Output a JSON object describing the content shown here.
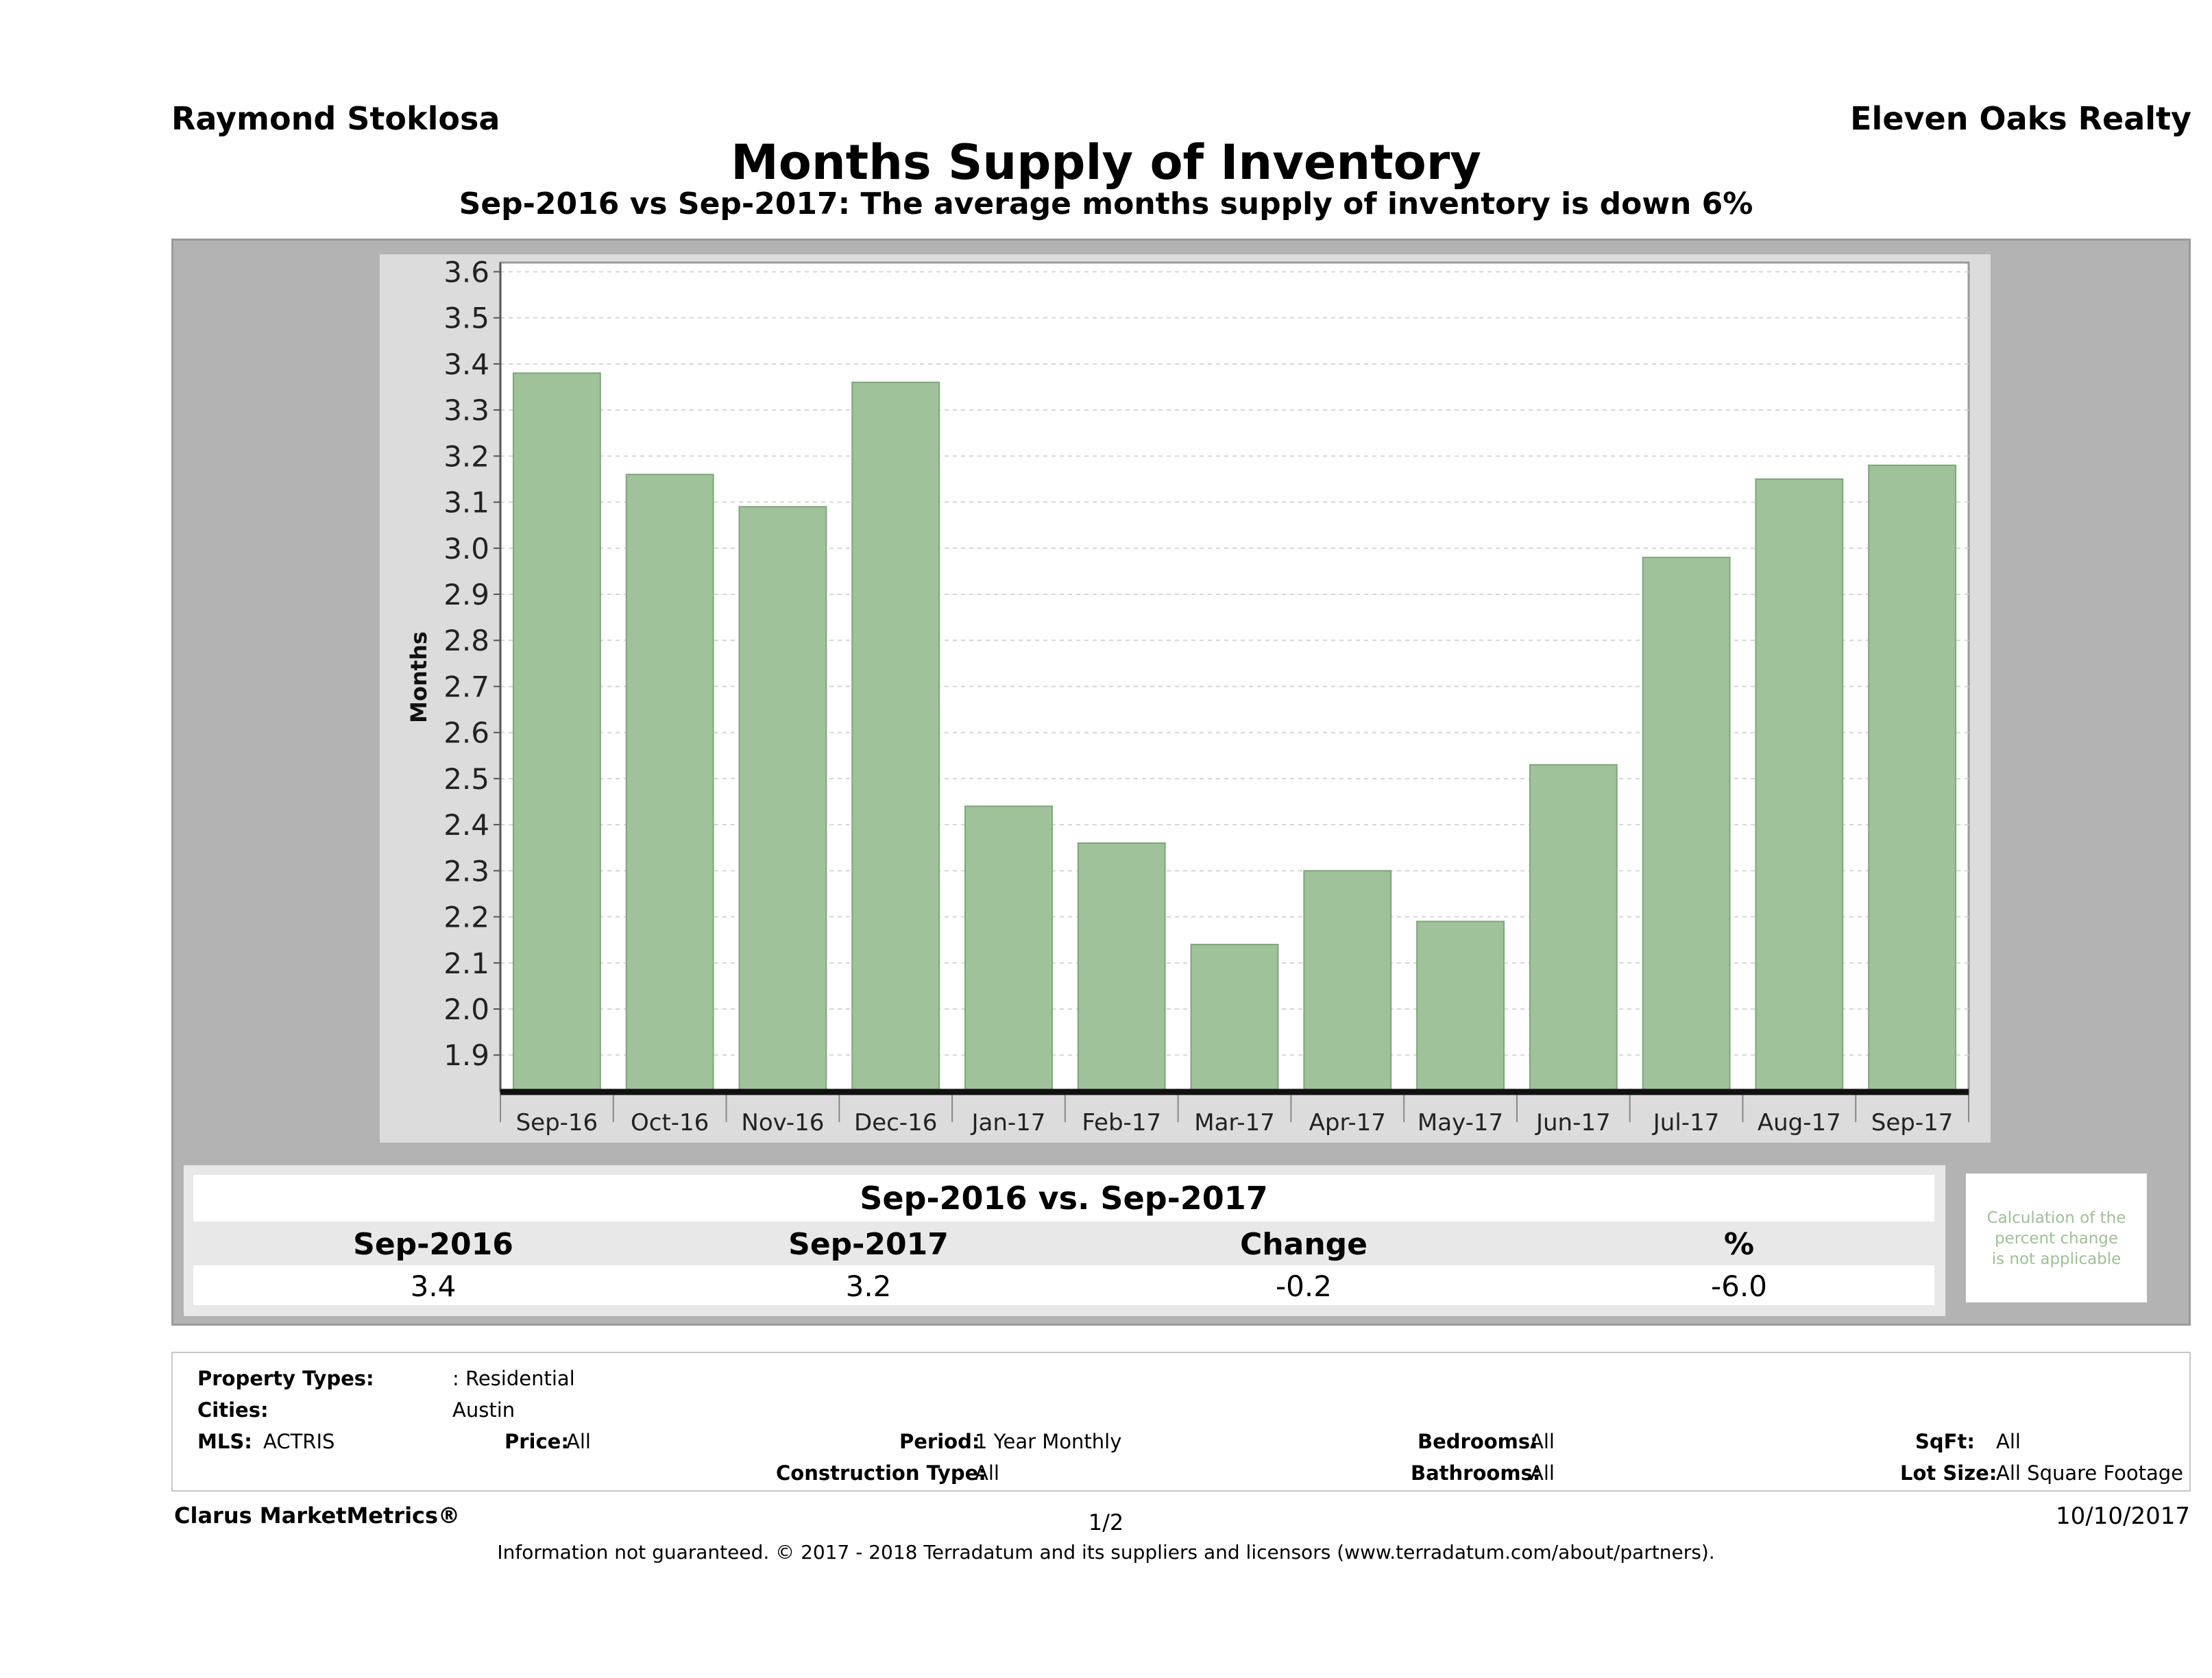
{
  "header": {
    "agent": "Raymond Stoklosa",
    "brokerage": "Eleven Oaks Realty",
    "title": "Months Supply of Inventory",
    "subtitle": "Sep-2016 vs Sep-2017: The average months supply of inventory is down 6%"
  },
  "chart_data": {
    "type": "bar",
    "title": "Months Supply of Inventory",
    "ylabel": "Months",
    "xlabel": "",
    "ylim": [
      1.82,
      3.62
    ],
    "yticks": [
      "1.9",
      "2.0",
      "2.1",
      "2.2",
      "2.3",
      "2.4",
      "2.5",
      "2.6",
      "2.7",
      "2.8",
      "2.9",
      "3.0",
      "3.1",
      "3.2",
      "3.3",
      "3.4",
      "3.5",
      "3.6"
    ],
    "categories": [
      "Sep-16",
      "Oct-16",
      "Nov-16",
      "Dec-16",
      "Jan-17",
      "Feb-17",
      "Mar-17",
      "Apr-17",
      "May-17",
      "Jun-17",
      "Jul-17",
      "Aug-17",
      "Sep-17"
    ],
    "values": [
      3.38,
      3.16,
      3.09,
      3.36,
      2.44,
      2.36,
      2.14,
      2.3,
      2.19,
      2.53,
      2.98,
      3.15,
      3.18
    ],
    "grid": true,
    "bar_color": "#9fc29a"
  },
  "summary": {
    "title": "Sep-2016 vs. Sep-2017",
    "headers": [
      "Sep-2016",
      "Sep-2017",
      "Change",
      "%"
    ],
    "values": [
      "3.4",
      "3.2",
      "-0.2",
      "-6.0"
    ],
    "note_lines": [
      "Calculation of the",
      "percent change",
      "is not applicable"
    ]
  },
  "criteria": {
    "property_types_label": "Property Types:",
    "property_types_value": ": Residential",
    "cities_label": "Cities:",
    "cities_value": "Austin",
    "mls_label": "MLS:",
    "mls_value": "ACTRIS",
    "price_label": "Price:",
    "price_value": "All",
    "period_label": "Period:",
    "period_value": "1 Year Monthly",
    "bedrooms_label": "Bedrooms:",
    "bedrooms_value": "All",
    "sqft_label": "SqFt:",
    "sqft_value": "All",
    "construction_label": "Construction Type:",
    "construction_value": "All",
    "bathrooms_label": "Bathrooms:",
    "bathrooms_value": "All",
    "lot_label": "Lot Size:",
    "lot_value": "All Square Footage"
  },
  "footer": {
    "brand": "Clarus MarketMetrics®",
    "page": "1/2",
    "date": "10/10/2017",
    "disclaimer": "Information not guaranteed. © 2017 - 2018 Terradatum and its suppliers and licensors (www.terradatum.com/about/partners)."
  }
}
